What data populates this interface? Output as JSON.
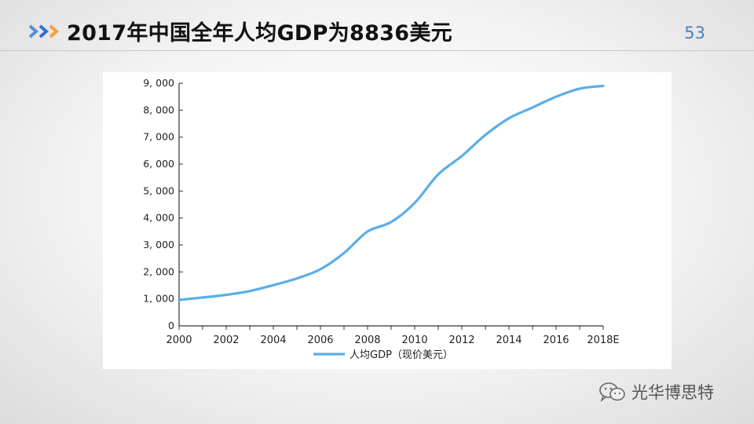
{
  "header": {
    "title": "2017年中国全年人均GDP为8836美元",
    "page_number": "53",
    "chevron_colors": [
      "#5b8fd6",
      "#2f6fd0",
      "#f2a03d"
    ]
  },
  "chart_data": {
    "type": "line",
    "title": "",
    "xlabel": "",
    "ylabel": "",
    "x_ticks": [
      "2000",
      "2002",
      "2004",
      "2006",
      "2008",
      "2010",
      "2012",
      "2014",
      "2016",
      "2018E"
    ],
    "y_ticks": [
      "0",
      "1, 000",
      "2, 000",
      "3, 000",
      "4, 000",
      "5, 000",
      "6, 000",
      "7, 000",
      "8, 000",
      "9, 000"
    ],
    "xlim": [
      2000,
      2018
    ],
    "ylim": [
      0,
      9000
    ],
    "grid": false,
    "legend_position": "bottom-center",
    "series": [
      {
        "name": "人均GDP（现价美元）",
        "color": "#5aaee6",
        "x": [
          2000,
          2001,
          2002,
          2003,
          2004,
          2005,
          2006,
          2007,
          2008,
          2009,
          2010,
          2011,
          2012,
          2013,
          2014,
          2015,
          2016,
          2017,
          2018
        ],
        "y": [
          960,
          1050,
          1150,
          1290,
          1510,
          1760,
          2100,
          2700,
          3500,
          3850,
          4560,
          5620,
          6300,
          7080,
          7700,
          8100,
          8500,
          8800,
          8900
        ]
      }
    ]
  },
  "watermark": {
    "text": "光华博思特",
    "icon": "wechat-icon"
  }
}
